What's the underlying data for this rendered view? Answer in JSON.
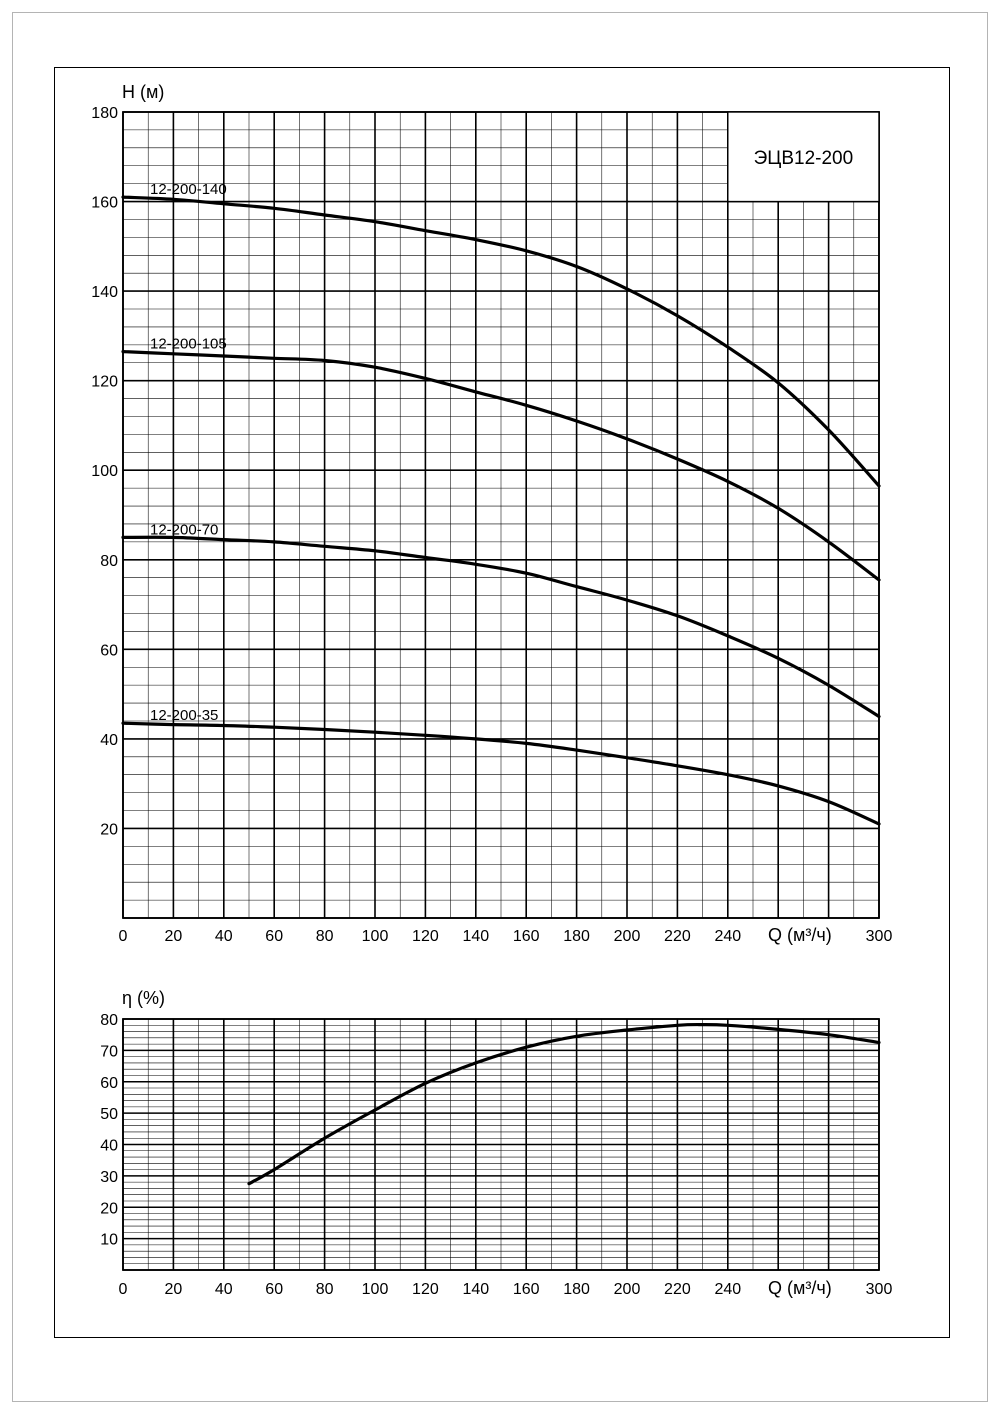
{
  "chart_data": [
    {
      "type": "line",
      "ylabel": "H (м)",
      "xlabel": "Q (м³/ч)",
      "model_title": "ЭЦВ12-200",
      "xlim": [
        0,
        300
      ],
      "ylim": [
        0,
        180
      ],
      "x_ticks": [
        "0",
        "20",
        "40",
        "60",
        "80",
        "100",
        "120",
        "140",
        "160",
        "180",
        "200",
        "220",
        "240",
        "300"
      ],
      "y_ticks": [
        "20",
        "40",
        "60",
        "80",
        "100",
        "120",
        "140",
        "160",
        "180"
      ],
      "grid": true,
      "series": [
        {
          "name": "12-200-140",
          "x": [
            0,
            20,
            40,
            60,
            80,
            100,
            120,
            140,
            160,
            180,
            200,
            220,
            240,
            260,
            280,
            300
          ],
          "y": [
            161,
            160.5,
            159.5,
            158.5,
            157,
            155.5,
            153.5,
            151.5,
            149,
            145.5,
            140.5,
            134.5,
            127.5,
            119.5,
            109,
            96.5
          ]
        },
        {
          "name": "12-200-105",
          "x": [
            0,
            20,
            40,
            60,
            80,
            100,
            120,
            140,
            160,
            180,
            200,
            220,
            240,
            260,
            280,
            300
          ],
          "y": [
            126.5,
            126,
            125.5,
            125,
            124.5,
            123,
            120.5,
            117.5,
            114.5,
            111,
            107,
            102.5,
            97.5,
            91.5,
            84,
            75.5
          ]
        },
        {
          "name": "12-200-70",
          "x": [
            0,
            20,
            40,
            60,
            80,
            100,
            120,
            140,
            160,
            180,
            200,
            220,
            240,
            260,
            280,
            300
          ],
          "y": [
            85,
            85,
            84.5,
            84,
            83,
            82,
            80.5,
            79,
            77,
            74,
            71,
            67.5,
            63,
            58,
            52,
            45
          ]
        },
        {
          "name": "12-200-35",
          "x": [
            0,
            20,
            40,
            60,
            80,
            100,
            120,
            140,
            160,
            180,
            200,
            220,
            240,
            260,
            280,
            300
          ],
          "y": [
            43.5,
            43.2,
            43,
            42.6,
            42.1,
            41.5,
            40.8,
            40,
            39,
            37.5,
            35.8,
            34,
            32,
            29.5,
            26,
            21
          ]
        }
      ]
    },
    {
      "type": "line",
      "ylabel": "η (%)",
      "xlabel": "Q (м³/ч)",
      "xlim": [
        0,
        300
      ],
      "ylim": [
        0,
        80
      ],
      "x_ticks": [
        "0",
        "20",
        "40",
        "60",
        "80",
        "100",
        "120",
        "140",
        "160",
        "180",
        "200",
        "220",
        "240",
        "300"
      ],
      "y_ticks": [
        "10",
        "20",
        "30",
        "40",
        "50",
        "60",
        "70",
        "80"
      ],
      "grid": true,
      "series": [
        {
          "x": [
            50,
            60,
            80,
            100,
            120,
            140,
            160,
            180,
            200,
            220,
            230,
            240,
            260,
            280,
            300
          ],
          "y": [
            27.5,
            32,
            42,
            51,
            59.5,
            66,
            71,
            74.5,
            76.5,
            78,
            78.2,
            78,
            76.7,
            75,
            72.5
          ]
        }
      ]
    }
  ]
}
